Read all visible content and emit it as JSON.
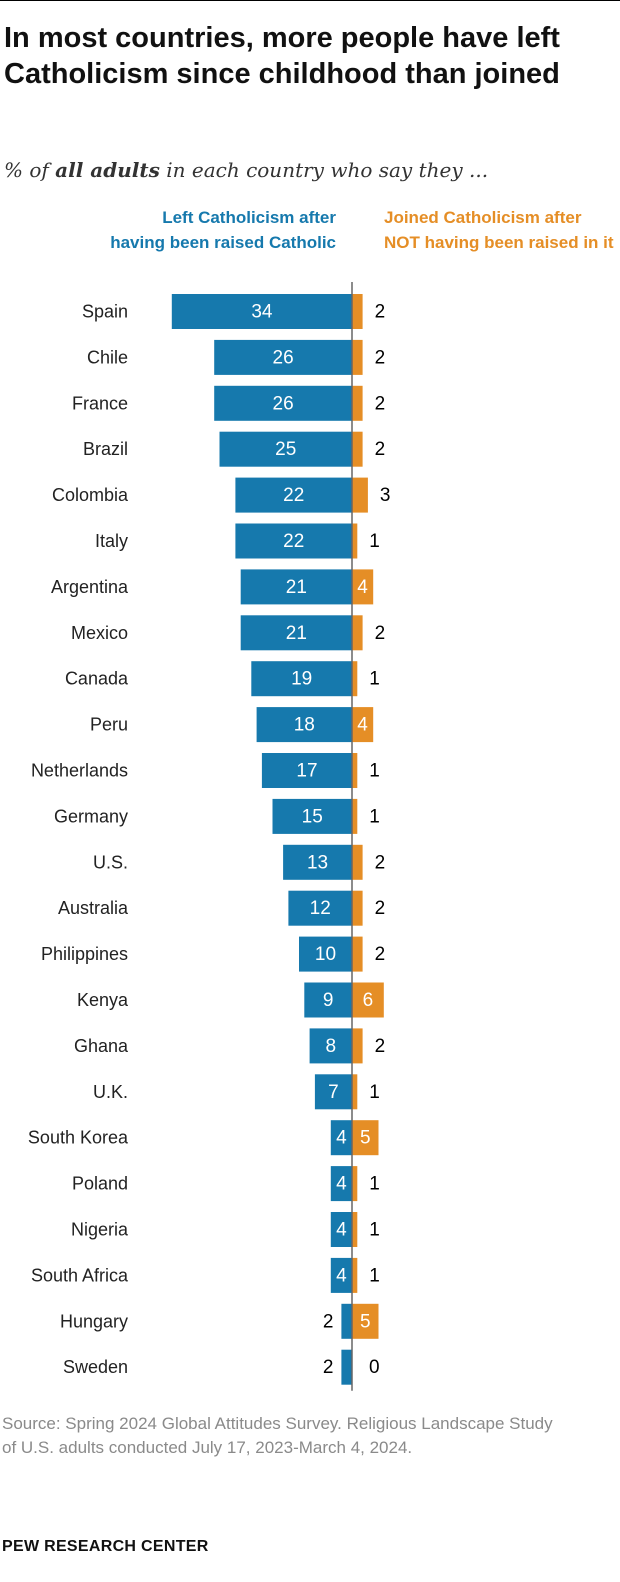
{
  "title": "In most countries, more people have left Catholicism since childhood than joined",
  "subtitle_pre": "% of ",
  "subtitle_bold": "all adults",
  "subtitle_post": " in each country who say they ...",
  "chart_data": {
    "type": "bar",
    "orientation": "horizontal-diverging",
    "categories": [
      "Spain",
      "Chile",
      "France",
      "Brazil",
      "Colombia",
      "Italy",
      "Argentina",
      "Mexico",
      "Canada",
      "Peru",
      "Netherlands",
      "Germany",
      "U.S.",
      "Australia",
      "Philippines",
      "Kenya",
      "Ghana",
      "U.K.",
      "South Korea",
      "Poland",
      "Nigeria",
      "South Africa",
      "Hungary",
      "Sweden"
    ],
    "series": [
      {
        "name": "Left Catholicism after having been raised Catholic",
        "color": "#1679ad",
        "values": [
          34,
          26,
          26,
          25,
          22,
          22,
          21,
          21,
          19,
          18,
          17,
          15,
          13,
          12,
          10,
          9,
          8,
          7,
          4,
          4,
          4,
          4,
          2,
          2
        ]
      },
      {
        "name": "Joined Catholicism after NOT having been raised in it",
        "color": "#e58e26",
        "values": [
          2,
          2,
          2,
          2,
          3,
          1,
          4,
          2,
          1,
          4,
          1,
          1,
          2,
          2,
          2,
          6,
          2,
          1,
          5,
          1,
          1,
          1,
          5,
          0
        ]
      }
    ]
  },
  "source": "Source: Spring 2024 Global Attitudes Survey. Religious Landscape Study of U.S. adults conducted July 17, 2023-March 4, 2024.",
  "brand": "PEW RESEARCH CENTER"
}
